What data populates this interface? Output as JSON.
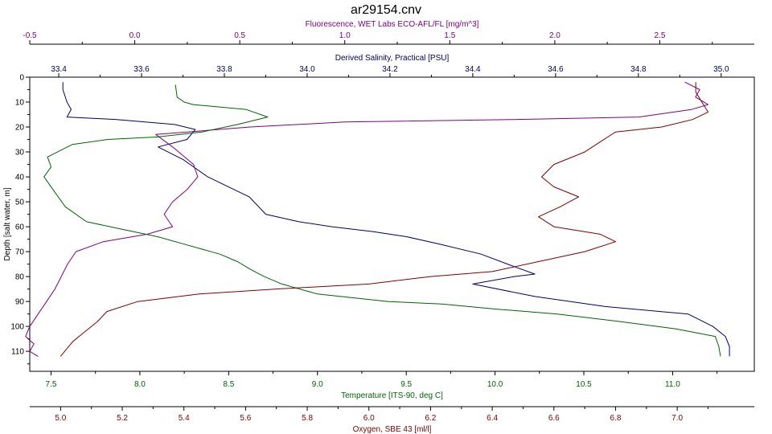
{
  "chart_data": {
    "type": "line",
    "title": "ar29154.cnv",
    "grid": false,
    "legend": "none",
    "y_axis": {
      "label": "Depth [salt water, m]",
      "range": [
        0,
        118
      ],
      "ticks": [
        0,
        10,
        20,
        30,
        40,
        50,
        60,
        70,
        80,
        90,
        100,
        110
      ],
      "inverted": true
    },
    "x_axes": [
      {
        "id": "fluorescence",
        "position": "top",
        "row": 0,
        "label": "Fluorescence, WET Labs ECO-AFL/FL [mg/m^3]",
        "color": "#800080",
        "range": [
          -0.5,
          2.95
        ],
        "ticks": [
          -0.5,
          0.0,
          0.5,
          1.0,
          1.5,
          2.0,
          2.5
        ],
        "tick_labels": [
          "-0.5",
          "0.0",
          "0.5",
          "1.0",
          "1.5",
          "2.0",
          "2.5"
        ]
      },
      {
        "id": "salinity",
        "position": "top",
        "row": 1,
        "label": "Derived Salinity, Practical [PSU]",
        "color": "#000066",
        "range": [
          33.33,
          35.08
        ],
        "ticks": [
          33.4,
          33.6,
          33.8,
          34.0,
          34.2,
          34.4,
          34.6,
          34.8,
          35.0
        ],
        "tick_labels": [
          "33.4",
          "33.6",
          "33.8",
          "34.0",
          "34.2",
          "34.4",
          "34.6",
          "34.8",
          "35.0"
        ]
      },
      {
        "id": "temperature",
        "position": "bottom",
        "row": 0,
        "label": "Temperature [ITS-90, deg C]",
        "color": "#006400",
        "range": [
          7.38,
          11.46
        ],
        "ticks": [
          7.5,
          8.0,
          8.5,
          9.0,
          9.5,
          10.0,
          10.5,
          11.0
        ],
        "tick_labels": [
          "7.5",
          "8.0",
          "8.5",
          "9.0",
          "9.5",
          "10.0",
          "10.5",
          "11.0"
        ]
      },
      {
        "id": "oxygen",
        "position": "bottom",
        "row": 1,
        "label": "Oxygen, SBE 43 [ml/l]",
        "color": "#800000",
        "range": [
          4.9,
          7.25
        ],
        "ticks": [
          5.0,
          5.2,
          5.4,
          5.6,
          5.8,
          6.0,
          6.2,
          6.4,
          6.6,
          6.8,
          7.0
        ],
        "tick_labels": [
          "5.0",
          "5.2",
          "5.4",
          "5.6",
          "5.8",
          "6.0",
          "6.2",
          "6.4",
          "6.6",
          "6.8",
          "7.0"
        ]
      }
    ],
    "series": [
      {
        "axis": "salinity",
        "color": "#000066",
        "points": [
          [
            33.41,
            2
          ],
          [
            33.41,
            5
          ],
          [
            33.42,
            10
          ],
          [
            33.43,
            13
          ],
          [
            33.42,
            16
          ],
          [
            33.54,
            17
          ],
          [
            33.68,
            19
          ],
          [
            33.73,
            21
          ],
          [
            33.71,
            25
          ],
          [
            33.64,
            28
          ],
          [
            33.7,
            33
          ],
          [
            33.76,
            40
          ],
          [
            33.86,
            48
          ],
          [
            33.9,
            55
          ],
          [
            33.98,
            58
          ],
          [
            34.06,
            60
          ],
          [
            34.16,
            62
          ],
          [
            34.24,
            64
          ],
          [
            34.32,
            67
          ],
          [
            34.42,
            71
          ],
          [
            34.5,
            76
          ],
          [
            34.55,
            79
          ],
          [
            34.5,
            80
          ],
          [
            34.4,
            83
          ],
          [
            34.55,
            88
          ],
          [
            34.72,
            92
          ],
          [
            34.92,
            95
          ],
          [
            34.98,
            100
          ],
          [
            35.01,
            104
          ],
          [
            35.02,
            108
          ],
          [
            35.02,
            112
          ]
        ]
      },
      {
        "axis": "fluorescence",
        "color": "#800080",
        "points": [
          [
            2.62,
            2
          ],
          [
            2.69,
            5
          ],
          [
            2.67,
            8
          ],
          [
            2.73,
            11
          ],
          [
            2.65,
            13
          ],
          [
            2.4,
            16
          ],
          [
            1.8,
            17
          ],
          [
            1.0,
            18
          ],
          [
            0.55,
            20
          ],
          [
            0.25,
            22
          ],
          [
            0.1,
            23
          ],
          [
            0.18,
            28
          ],
          [
            0.28,
            35
          ],
          [
            0.3,
            40
          ],
          [
            0.25,
            45
          ],
          [
            0.18,
            50
          ],
          [
            0.14,
            55
          ],
          [
            0.18,
            60
          ],
          [
            0.06,
            63
          ],
          [
            -0.15,
            66
          ],
          [
            -0.28,
            70
          ],
          [
            -0.32,
            75
          ],
          [
            -0.35,
            80
          ],
          [
            -0.38,
            85
          ],
          [
            -0.42,
            90
          ],
          [
            -0.46,
            95
          ],
          [
            -0.5,
            100
          ],
          [
            -0.52,
            104
          ],
          [
            -0.48,
            107
          ],
          [
            -0.5,
            110
          ],
          [
            -0.46,
            112
          ]
        ]
      },
      {
        "axis": "temperature",
        "color": "#006400",
        "points": [
          [
            8.2,
            3
          ],
          [
            8.21,
            8
          ],
          [
            8.25,
            10
          ],
          [
            8.3,
            11
          ],
          [
            8.6,
            13
          ],
          [
            8.72,
            16
          ],
          [
            8.55,
            19
          ],
          [
            8.35,
            22
          ],
          [
            8.1,
            24
          ],
          [
            7.82,
            25
          ],
          [
            7.62,
            27
          ],
          [
            7.48,
            32
          ],
          [
            7.5,
            36
          ],
          [
            7.46,
            40
          ],
          [
            7.52,
            46
          ],
          [
            7.58,
            52
          ],
          [
            7.7,
            58
          ],
          [
            7.9,
            61
          ],
          [
            8.1,
            64
          ],
          [
            8.25,
            67
          ],
          [
            8.45,
            71
          ],
          [
            8.55,
            74
          ],
          [
            8.62,
            77
          ],
          [
            8.7,
            80
          ],
          [
            8.8,
            83
          ],
          [
            9.0,
            87
          ],
          [
            9.4,
            90
          ],
          [
            9.7,
            91
          ],
          [
            10.0,
            93
          ],
          [
            10.35,
            95
          ],
          [
            10.7,
            98
          ],
          [
            11.02,
            101
          ],
          [
            11.24,
            104
          ],
          [
            11.26,
            108
          ],
          [
            11.27,
            112
          ]
        ]
      },
      {
        "axis": "oxygen",
        "color": "#800000",
        "points": [
          [
            7.06,
            2
          ],
          [
            7.06,
            6
          ],
          [
            7.08,
            10
          ],
          [
            7.1,
            14
          ],
          [
            7.05,
            17
          ],
          [
            6.95,
            20
          ],
          [
            6.8,
            22
          ],
          [
            6.75,
            26
          ],
          [
            6.7,
            30
          ],
          [
            6.6,
            35
          ],
          [
            6.56,
            40
          ],
          [
            6.6,
            44
          ],
          [
            6.68,
            48
          ],
          [
            6.62,
            52
          ],
          [
            6.55,
            56
          ],
          [
            6.6,
            60
          ],
          [
            6.75,
            63
          ],
          [
            6.8,
            66
          ],
          [
            6.7,
            70
          ],
          [
            6.55,
            74
          ],
          [
            6.4,
            78
          ],
          [
            6.2,
            80
          ],
          [
            6.0,
            83
          ],
          [
            5.7,
            85
          ],
          [
            5.45,
            87
          ],
          [
            5.25,
            90
          ],
          [
            5.15,
            94
          ],
          [
            5.12,
            98
          ],
          [
            5.08,
            102
          ],
          [
            5.04,
            106
          ],
          [
            5.02,
            109
          ],
          [
            5.0,
            112
          ]
        ]
      }
    ]
  }
}
